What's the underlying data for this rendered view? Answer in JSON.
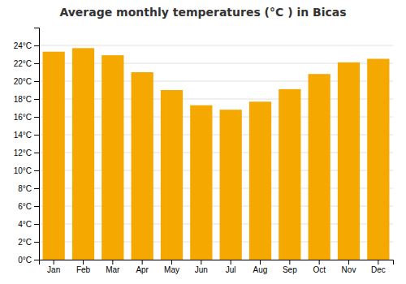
{
  "chart_data": {
    "type": "bar",
    "title": "Average monthly temperatures (°C ) in Bicas",
    "categories": [
      "Jan",
      "Feb",
      "Mar",
      "Apr",
      "May",
      "Jun",
      "Jul",
      "Aug",
      "Sep",
      "Oct",
      "Nov",
      "Dec"
    ],
    "values": [
      23.3,
      23.7,
      22.9,
      21.0,
      19.0,
      17.3,
      16.8,
      17.7,
      19.1,
      20.8,
      22.1,
      22.5
    ],
    "color": "#F5A800",
    "ylim": [
      0,
      26
    ],
    "yticks": [
      {
        "value": 0,
        "label": "0°C"
      },
      {
        "value": 2,
        "label": "2°C"
      },
      {
        "value": 4,
        "label": "4°C"
      },
      {
        "value": 6,
        "label": "6°C"
      },
      {
        "value": 8,
        "label": "8°C"
      },
      {
        "value": 10,
        "label": "10°C"
      },
      {
        "value": 12,
        "label": "12°C"
      },
      {
        "value": 14,
        "label": "14°C"
      },
      {
        "value": 16,
        "label": "16°C"
      },
      {
        "value": 18,
        "label": "18°C"
      },
      {
        "value": 20,
        "label": "20°C"
      },
      {
        "value": 22,
        "label": "22°C"
      },
      {
        "value": 24,
        "label": "24°C"
      }
    ],
    "grid": true
  }
}
